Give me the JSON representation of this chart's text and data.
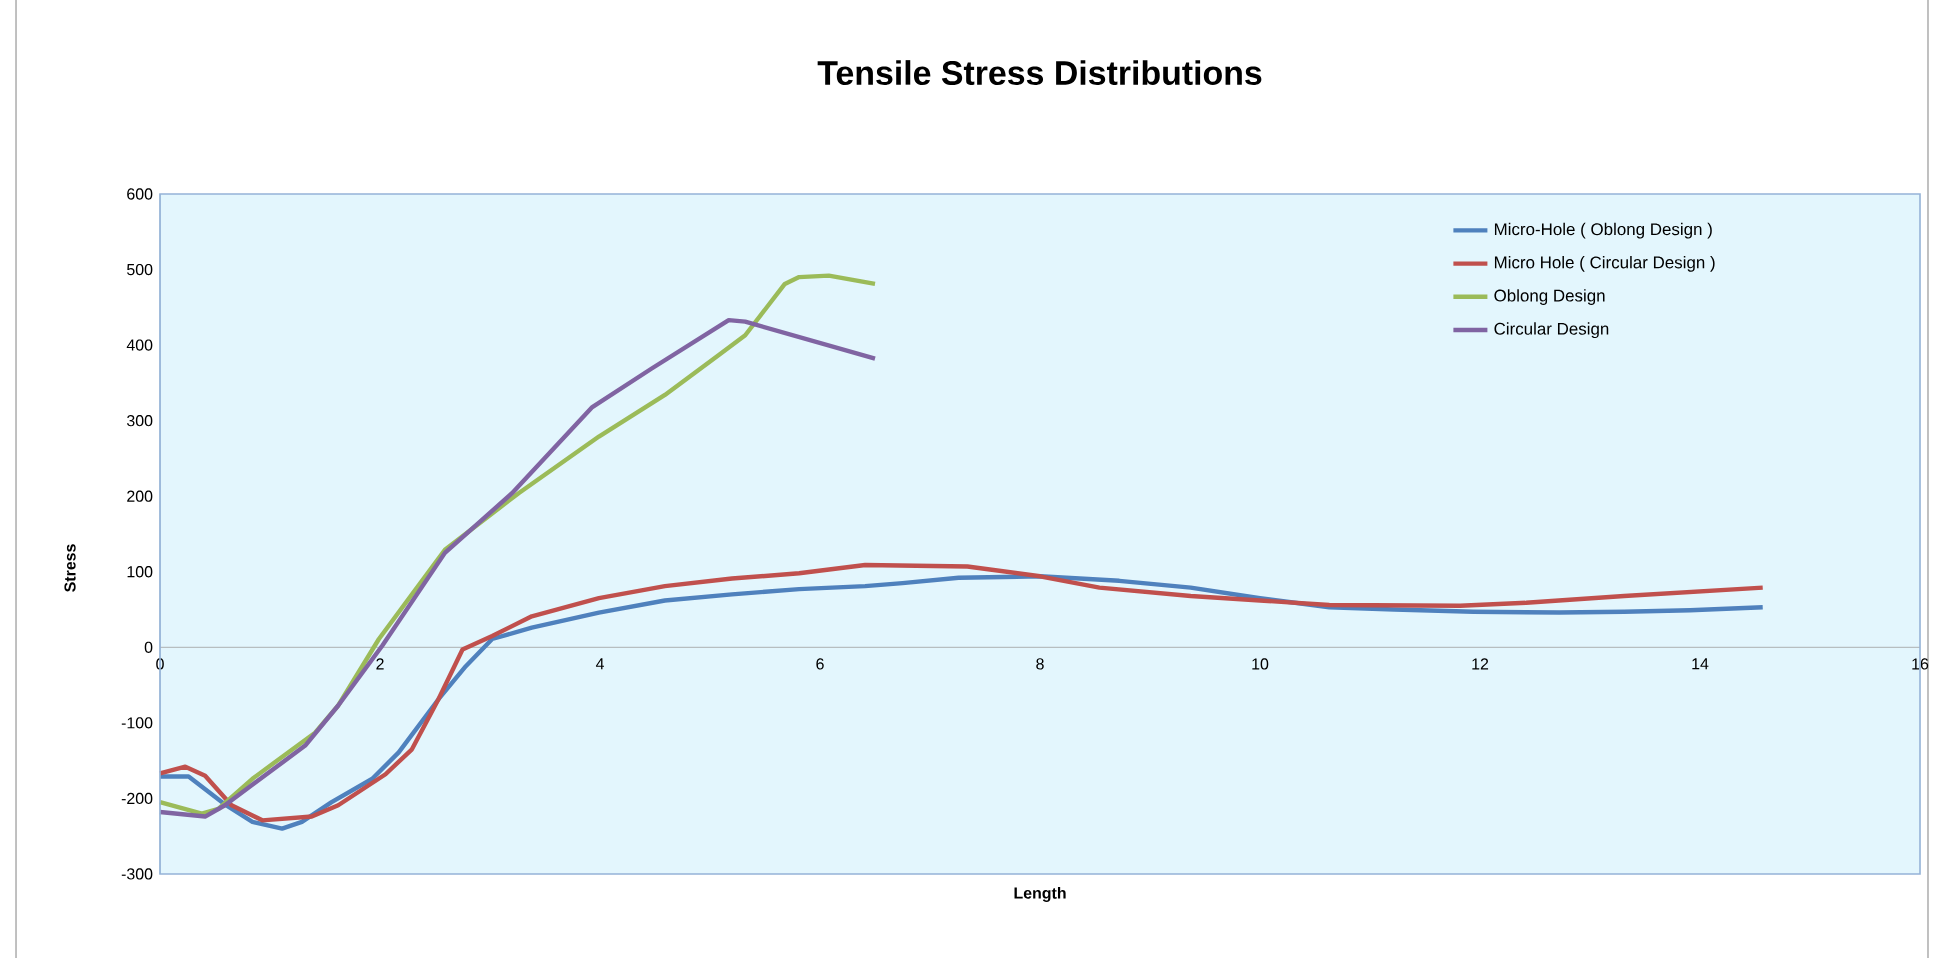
{
  "chart_data": {
    "type": "line",
    "title": "Tensile Stress Distributions",
    "xlabel": "Length",
    "ylabel": "Stress",
    "xlim": [
      0,
      16
    ],
    "ylim": [
      -300,
      600
    ],
    "xticks": [
      0,
      2,
      4,
      6,
      8,
      10,
      12,
      14,
      16
    ],
    "yticks": [
      -300,
      -200,
      -100,
      0,
      100,
      200,
      300,
      400,
      500,
      600
    ],
    "grid": false,
    "legend": "top right",
    "marker": "none",
    "line_style": "solid",
    "series": [
      {
        "name": "Micro-Hole ( Oblong Design )",
        "color": "#4f81bd",
        "x": [
          0,
          0.26,
          0.6,
          0.84,
          1.11,
          1.29,
          1.56,
          1.93,
          2.17,
          2.53,
          2.78,
          3.02,
          3.38,
          3.99,
          4.59,
          5.2,
          5.81,
          6.41,
          6.75,
          7.26,
          8.0,
          8.72,
          9.37,
          10.0,
          10.63,
          11.22,
          11.94,
          12.72,
          13.31,
          13.91,
          14.57
        ],
        "values": [
          -171,
          -171,
          -209,
          -231,
          -240,
          -231,
          -205,
          -174,
          -139,
          -69,
          -25,
          11,
          26,
          46,
          62,
          70,
          77,
          81,
          85,
          92,
          94,
          88,
          79,
          65,
          53,
          50,
          47,
          46,
          47,
          49,
          53
        ]
      },
      {
        "name": "Micro Hole ( Circular Design )",
        "color": "#c0504d",
        "x": [
          0,
          0.23,
          0.41,
          0.65,
          0.93,
          1.38,
          1.62,
          2.05,
          2.29,
          2.53,
          2.75,
          3.02,
          3.38,
          3.99,
          4.59,
          5.2,
          5.81,
          6.41,
          7.34,
          8.0,
          8.54,
          9.37,
          10.0,
          10.63,
          11.82,
          12.42,
          13.31,
          14.57
        ],
        "values": [
          -167,
          -158,
          -170,
          -209,
          -229,
          -224,
          -209,
          -168,
          -135,
          -69,
          -3,
          15,
          41,
          65,
          81,
          91,
          98,
          109,
          107,
          94,
          79,
          68,
          62,
          56,
          55,
          59,
          68,
          79
        ]
      },
      {
        "name": "Oblong Design",
        "color": "#9bbb59",
        "x": [
          0,
          0.38,
          0.53,
          0.84,
          1.41,
          1.62,
          1.99,
          2.59,
          3.26,
          3.99,
          4.59,
          5.08,
          5.32,
          5.68,
          5.81,
          6.08,
          6.5
        ],
        "values": [
          -205,
          -220,
          -214,
          -174,
          -113,
          -77,
          11,
          129,
          204,
          279,
          334,
          387,
          413,
          481,
          490,
          492,
          481
        ]
      },
      {
        "name": "Circular Design",
        "color": "#8064a2",
        "x": [
          0,
          0.41,
          0.59,
          1.32,
          1.62,
          2.02,
          2.59,
          3.2,
          3.93,
          4.47,
          5.17,
          5.32,
          6.5
        ],
        "values": [
          -218,
          -224,
          -209,
          -130,
          -77,
          2,
          125,
          204,
          318,
          369,
          433,
          431,
          382
        ]
      }
    ]
  }
}
